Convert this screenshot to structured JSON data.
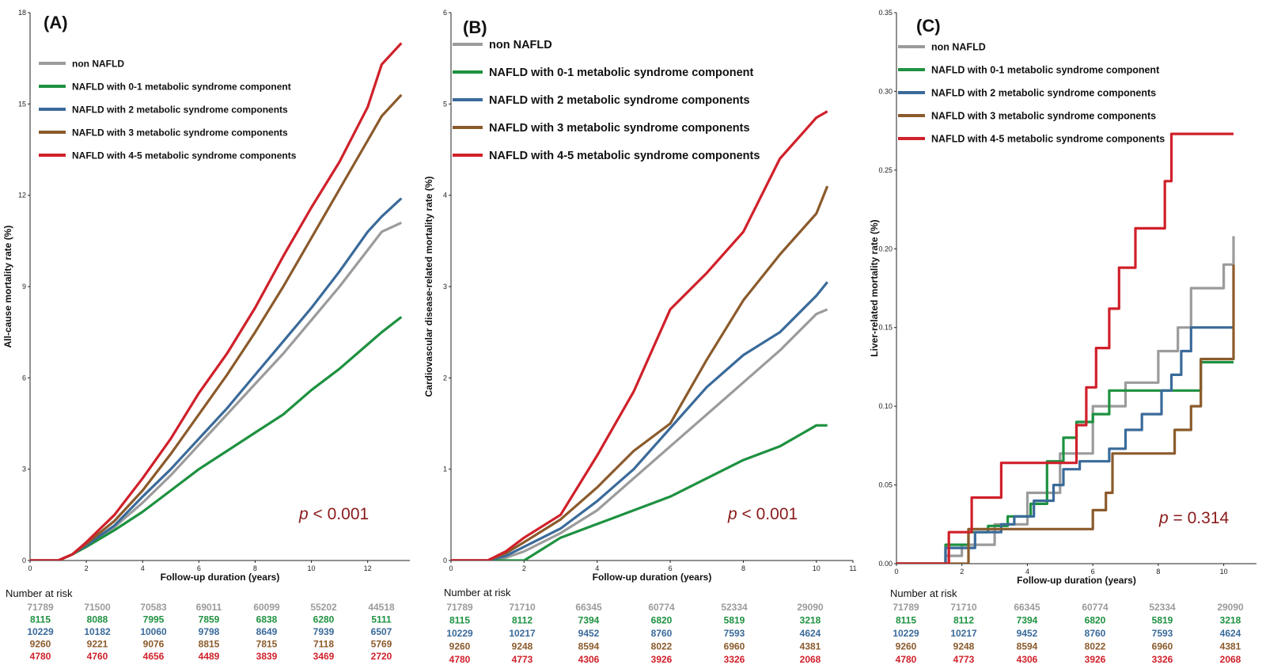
{
  "colors": {
    "non_nafld": "#9b9b9b",
    "m01": "#1e9140",
    "m2": "#3a6a9a",
    "m3": "#8b5a2b",
    "m45": "#d0202a",
    "pvalue": "#8a1a1a",
    "risk_title": "#111111"
  },
  "chart_data": [
    {
      "type": "line",
      "panel": "(A)",
      "xlabel": "Follow-up duration (years)",
      "ylabel": "All-cause mortality rate (%)",
      "xlim": [
        0,
        13.5
      ],
      "ylim": [
        0,
        18
      ],
      "xticks": [
        0,
        2,
        4,
        6,
        8,
        10,
        12
      ],
      "yticks": [
        0,
        3,
        6,
        9,
        12,
        15,
        18
      ],
      "legend_placement": "top-left",
      "legend_size": "small",
      "pvalue_italic": "p",
      "pvalue_rest": " < 0.001",
      "series": [
        {
          "name": "non NAFLD",
          "key": "non_nafld",
          "x": [
            0,
            1,
            1.5,
            2,
            3,
            4,
            5,
            6,
            7,
            8,
            9,
            10,
            11,
            12,
            12.5,
            13.2
          ],
          "y": [
            0,
            0,
            0.2,
            0.5,
            1.1,
            1.9,
            2.8,
            3.8,
            4.8,
            5.8,
            6.8,
            7.9,
            9.0,
            10.2,
            10.8,
            11.1
          ]
        },
        {
          "name": "NAFLD with 0-1 metabolic syndrome component",
          "key": "m01",
          "x": [
            0,
            1,
            1.5,
            2,
            3,
            4,
            5,
            6,
            7,
            8,
            9,
            10,
            11,
            12,
            12.5,
            13.2
          ],
          "y": [
            0,
            0,
            0.2,
            0.45,
            1.0,
            1.6,
            2.3,
            3.0,
            3.6,
            4.2,
            4.8,
            5.6,
            6.3,
            7.1,
            7.5,
            8.0
          ]
        },
        {
          "name": "NAFLD with 2 metabolic syndrome components",
          "key": "m2",
          "x": [
            0,
            1,
            1.5,
            2,
            3,
            4,
            5,
            6,
            7,
            8,
            9,
            10,
            11,
            12,
            12.5,
            13.2
          ],
          "y": [
            0,
            0,
            0.2,
            0.5,
            1.15,
            2.1,
            3.0,
            4.0,
            5.0,
            6.1,
            7.2,
            8.3,
            9.5,
            10.8,
            11.3,
            11.9
          ]
        },
        {
          "name": "NAFLD with 3 metabolic syndrome components",
          "key": "m3",
          "x": [
            0,
            1,
            1.5,
            2,
            3,
            4,
            5,
            6,
            7,
            8,
            9,
            10,
            11,
            12,
            12.5,
            13.2
          ],
          "y": [
            0,
            0,
            0.2,
            0.55,
            1.3,
            2.3,
            3.5,
            4.8,
            6.1,
            7.5,
            9.0,
            10.6,
            12.2,
            13.8,
            14.6,
            15.3
          ]
        },
        {
          "name": "NAFLD with 4-5 metabolic syndrome components",
          "key": "m45",
          "x": [
            0,
            1,
            1.5,
            2,
            3,
            4,
            5,
            6,
            7,
            8,
            9,
            10,
            11,
            12,
            12.5,
            13.2
          ],
          "y": [
            0,
            0,
            0.2,
            0.6,
            1.5,
            2.7,
            4.0,
            5.5,
            6.8,
            8.3,
            10.0,
            11.6,
            13.1,
            14.9,
            16.3,
            17.0
          ]
        }
      ],
      "risk_title": "Number at risk",
      "risk_table": [
        {
          "key": "non_nafld",
          "values": [
            "71789",
            "71500",
            "70583",
            "69011",
            "60099",
            "55202",
            "44518"
          ]
        },
        {
          "key": "m01",
          "values": [
            "8115",
            "8088",
            "7995",
            "7859",
            "6838",
            "6280",
            "5111"
          ]
        },
        {
          "key": "m2",
          "values": [
            "10229",
            "10182",
            "10060",
            "9798",
            "8649",
            "7939",
            "6507"
          ]
        },
        {
          "key": "m3",
          "values": [
            "9260",
            "9221",
            "9076",
            "8815",
            "7815",
            "7118",
            "5769"
          ]
        },
        {
          "key": "m45",
          "values": [
            "4780",
            "4760",
            "4656",
            "4489",
            "3839",
            "3469",
            "2720"
          ]
        }
      ]
    },
    {
      "type": "line",
      "panel": "(B)",
      "xlabel": "Follow-up duration (years)",
      "ylabel": "Cardiovascular disease-related mortality rate (%)",
      "xlim": [
        0,
        11
      ],
      "ylim": [
        0,
        6
      ],
      "xticks": [
        0,
        2,
        4,
        6,
        8,
        10,
        11
      ],
      "yticks": [
        0,
        1,
        2,
        3,
        4,
        5,
        6
      ],
      "legend_placement": "top-left",
      "legend_size": "large",
      "pvalue_italic": "p",
      "pvalue_rest": " < 0.001",
      "series": [
        {
          "name": "non NAFLD",
          "key": "non_nafld",
          "x": [
            0,
            1,
            1.5,
            2,
            3,
            4,
            5,
            6,
            7,
            8,
            9,
            10,
            10.3
          ],
          "y": [
            0,
            0,
            0.03,
            0.1,
            0.3,
            0.55,
            0.9,
            1.25,
            1.6,
            1.95,
            2.3,
            2.7,
            2.75
          ]
        },
        {
          "name": "NAFLD with 0-1 metabolic syndrome component",
          "key": "m01",
          "x": [
            0,
            2,
            3,
            4,
            5,
            6,
            7,
            8,
            9,
            10,
            10.3
          ],
          "y": [
            0,
            0,
            0.25,
            0.4,
            0.55,
            0.7,
            0.9,
            1.1,
            1.25,
            1.48,
            1.48
          ]
        },
        {
          "name": "NAFLD with 2 metabolic syndrome components",
          "key": "m2",
          "x": [
            0,
            1,
            1.5,
            2,
            3,
            4,
            5,
            6,
            7,
            8,
            9,
            10,
            10.3
          ],
          "y": [
            0,
            0,
            0.05,
            0.15,
            0.35,
            0.65,
            1.0,
            1.45,
            1.9,
            2.25,
            2.5,
            2.9,
            3.05
          ]
        },
        {
          "name": "NAFLD with 3 metabolic syndrome components",
          "key": "m3",
          "x": [
            0,
            1,
            1.5,
            2,
            3,
            4,
            5,
            6,
            7,
            8,
            9,
            10,
            10.3
          ],
          "y": [
            0,
            0,
            0.08,
            0.2,
            0.45,
            0.8,
            1.2,
            1.5,
            2.2,
            2.85,
            3.35,
            3.8,
            4.1
          ]
        },
        {
          "name": "NAFLD with 4-5 metabolic syndrome components",
          "key": "m45",
          "x": [
            0,
            1,
            1.5,
            2,
            3,
            4,
            5,
            6,
            7,
            8,
            9,
            10,
            10.3
          ],
          "y": [
            0,
            0,
            0.1,
            0.25,
            0.5,
            1.15,
            1.85,
            2.75,
            3.15,
            3.6,
            4.4,
            4.85,
            4.92
          ]
        }
      ],
      "risk_title": "Number at risk",
      "risk_table": [
        {
          "key": "non_nafld",
          "values": [
            "71789",
            "71710",
            "66345",
            "60774",
            "52334",
            "29090"
          ]
        },
        {
          "key": "m01",
          "values": [
            "8115",
            "8112",
            "7394",
            "6820",
            "5819",
            "3218"
          ]
        },
        {
          "key": "m2",
          "values": [
            "10229",
            "10217",
            "9452",
            "8760",
            "7593",
            "4624"
          ]
        },
        {
          "key": "m3",
          "values": [
            "9260",
            "9248",
            "8594",
            "8022",
            "6960",
            "4381"
          ]
        },
        {
          "key": "m45",
          "values": [
            "4780",
            "4773",
            "4306",
            "3926",
            "3326",
            "2068"
          ]
        }
      ]
    },
    {
      "type": "line",
      "panel": "(C)",
      "xlabel": "Follow-up duration (years)",
      "ylabel": "Liver-related mortality rate (%)",
      "xlim": [
        0,
        11
      ],
      "ylim": [
        0,
        0.35
      ],
      "xticks": [
        0,
        2,
        4,
        6,
        8,
        10
      ],
      "yticks": [
        0.0,
        0.05,
        0.1,
        0.15,
        0.2,
        0.25,
        0.3,
        0.35
      ],
      "ytick_labels": [
        "0.00",
        "0.05",
        "0.10",
        "0.15",
        "0.20",
        "0.25",
        "0.30",
        "0.35"
      ],
      "legend_placement": "top-left",
      "legend_size": "small",
      "pvalue_italic": "p",
      "pvalue_rest": " = 0.314",
      "step": true,
      "series": [
        {
          "name": "non NAFLD",
          "key": "non_nafld",
          "x": [
            0,
            1,
            1.5,
            2,
            3,
            4,
            5,
            6,
            7,
            8,
            8.6,
            9,
            10,
            10.3
          ],
          "y": [
            0,
            0,
            0.005,
            0.012,
            0.025,
            0.045,
            0.07,
            0.1,
            0.115,
            0.135,
            0.15,
            0.175,
            0.19,
            0.208
          ]
        },
        {
          "name": "NAFLD with 0-1 metabolic syndrome component",
          "key": "m01",
          "x": [
            0,
            1.5,
            2.2,
            2.8,
            3.4,
            4.1,
            4.6,
            5.1,
            5.5,
            6,
            6.5,
            9.3,
            10.3
          ],
          "y": [
            0,
            0.012,
            0.02,
            0.024,
            0.03,
            0.038,
            0.065,
            0.08,
            0.09,
            0.095,
            0.11,
            0.128,
            0.128
          ]
        },
        {
          "name": "NAFLD with 2 metabolic syndrome components",
          "key": "m2",
          "x": [
            0,
            1.5,
            2.4,
            3.2,
            3.6,
            4.2,
            4.8,
            5.1,
            5.6,
            6.5,
            7,
            7.5,
            8.1,
            8.4,
            8.7,
            9,
            9.3,
            10.3
          ],
          "y": [
            0,
            0.01,
            0.02,
            0.025,
            0.03,
            0.04,
            0.05,
            0.06,
            0.065,
            0.073,
            0.085,
            0.095,
            0.11,
            0.12,
            0.135,
            0.15,
            0.15,
            0.15
          ]
        },
        {
          "name": "NAFLD with 3 metabolic syndrome components",
          "key": "m3",
          "x": [
            0,
            2.2,
            3.3,
            5.5,
            6,
            6.4,
            6.6,
            8.2,
            8.5,
            9,
            9.3,
            10.2,
            10.3
          ],
          "y": [
            0,
            0.022,
            0.022,
            0.022,
            0.034,
            0.045,
            0.07,
            0.07,
            0.085,
            0.1,
            0.13,
            0.13,
            0.19
          ]
        },
        {
          "name": "NAFLD with 4-5 metabolic syndrome components",
          "key": "m45",
          "x": [
            0,
            1.6,
            2.3,
            3.2,
            5.3,
            5.5,
            5.8,
            6.1,
            6.5,
            6.8,
            7.3,
            7.8,
            8.2,
            8.4,
            8.6,
            10.3
          ],
          "y": [
            0,
            0.02,
            0.042,
            0.064,
            0.064,
            0.088,
            0.112,
            0.137,
            0.162,
            0.188,
            0.213,
            0.213,
            0.243,
            0.273,
            0.273,
            0.273
          ]
        }
      ],
      "risk_title": "Number at risk",
      "risk_table": [
        {
          "key": "non_nafld",
          "values": [
            "71789",
            "71710",
            "66345",
            "60774",
            "52334",
            "29090"
          ]
        },
        {
          "key": "m01",
          "values": [
            "8115",
            "8112",
            "7394",
            "6820",
            "5819",
            "3218"
          ]
        },
        {
          "key": "m2",
          "values": [
            "10229",
            "10217",
            "9452",
            "8760",
            "7593",
            "4624"
          ]
        },
        {
          "key": "m3",
          "values": [
            "9260",
            "9248",
            "8594",
            "8022",
            "6960",
            "4381"
          ]
        },
        {
          "key": "m45",
          "values": [
            "4780",
            "4773",
            "4306",
            "3926",
            "3326",
            "2068"
          ]
        }
      ]
    }
  ]
}
